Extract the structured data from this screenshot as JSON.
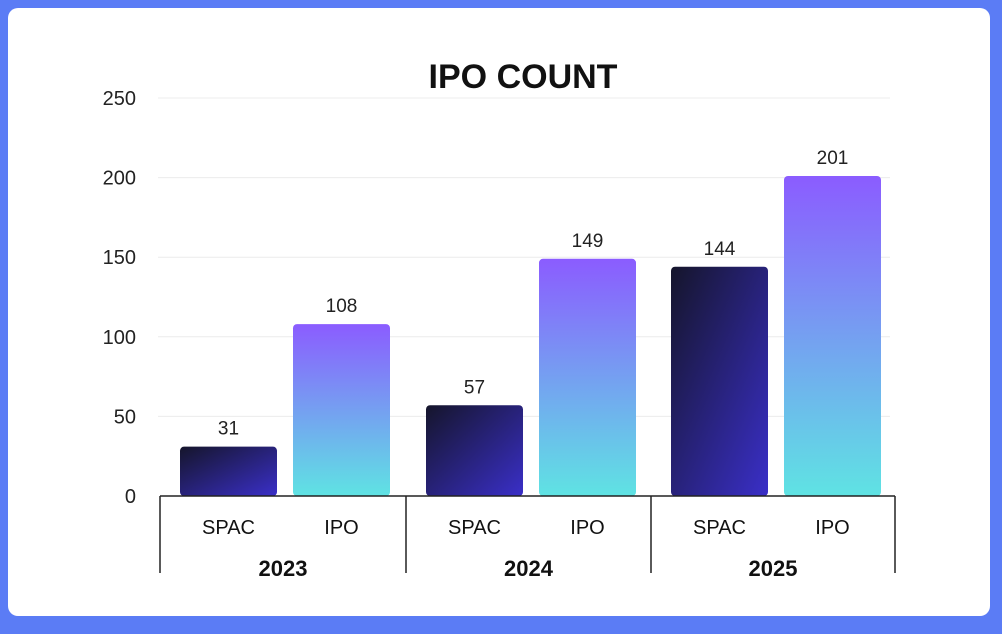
{
  "chart_data": {
    "type": "bar",
    "title": "IPO COUNT",
    "groups": [
      "2023",
      "2024",
      "2025"
    ],
    "sub_categories": [
      "SPAC",
      "IPO"
    ],
    "series": [
      {
        "name": "SPAC",
        "values": [
          31,
          57,
          144
        ]
      },
      {
        "name": "IPO",
        "values": [
          108,
          149,
          201
        ]
      }
    ],
    "y_ticks": [
      "0",
      "50",
      "100",
      "150",
      "200",
      "250"
    ],
    "ylim": [
      0,
      250
    ],
    "grid": true,
    "legend": "none",
    "colors": {
      "spac_top": "#15152b",
      "spac_bottom": "#3a2fc8",
      "ipo_top": "#8b5cff",
      "ipo_bottom": "#5fe3e3",
      "grid": "#ececec",
      "axis": "#222222"
    }
  }
}
